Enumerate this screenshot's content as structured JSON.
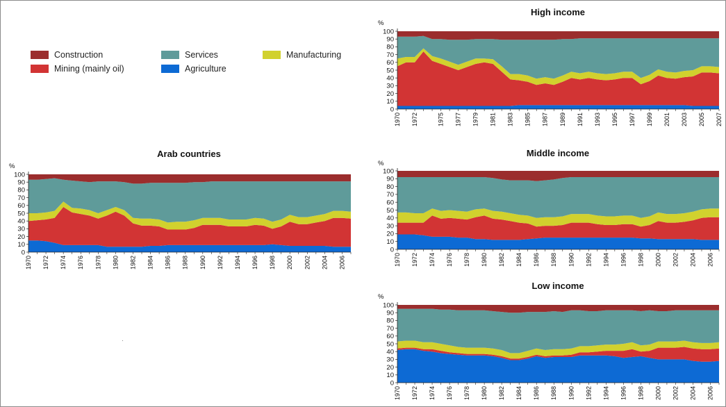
{
  "colors": {
    "Construction": "#9b2d2d",
    "Mining (mainly oil)": "#d23434",
    "Manufacturing": "#d1d12e",
    "Services": "#5f9b9a",
    "Agriculture": "#0d6ad4"
  },
  "legend": [
    {
      "label": "Construction",
      "key": "Construction"
    },
    {
      "label": "Services",
      "key": "Services"
    },
    {
      "label": "Manufacturing",
      "key": "Manufacturing"
    },
    {
      "label": "Mining (mainly oil)",
      "key": "Mining (mainly oil)"
    },
    {
      "label": "Agriculture",
      "key": "Agriculture"
    }
  ],
  "chart_data": [
    {
      "type": "area",
      "title": "High income",
      "ylabel": "%",
      "ylim": [
        0,
        100
      ],
      "yticks": [
        0,
        10,
        20,
        30,
        40,
        50,
        60,
        70,
        80,
        90,
        100
      ],
      "x": [
        1970,
        1971,
        1972,
        1973,
        1974,
        1975,
        1976,
        1977,
        1978,
        1979,
        1980,
        1981,
        1982,
        1983,
        1984,
        1985,
        1986,
        1987,
        1988,
        1989,
        1990,
        1991,
        1992,
        1993,
        1994,
        1995,
        1996,
        1997,
        1998,
        1999,
        2000,
        2001,
        2002,
        2003,
        2004,
        2005,
        2006,
        2007
      ],
      "xticks": [
        "1970",
        "1972",
        "1975",
        "1977",
        "1979",
        "1981",
        "1983",
        "1985",
        "1987",
        "1989",
        "1991",
        "1993",
        "1995",
        "1997",
        "1999",
        "2001",
        "2003",
        "2005",
        "2007"
      ],
      "series": [
        {
          "name": "Agriculture",
          "values": [
            4,
            4,
            4,
            4,
            4,
            4,
            4,
            4,
            4,
            4,
            4,
            4,
            4,
            4,
            5,
            5,
            5,
            5,
            5,
            5,
            5,
            5,
            5,
            5,
            5,
            5,
            5,
            5,
            5,
            5,
            5,
            5,
            5,
            5,
            4,
            4,
            4,
            4
          ]
        },
        {
          "name": "Mining (mainly oil)",
          "values": [
            51,
            56,
            56,
            70,
            58,
            54,
            50,
            46,
            50,
            54,
            56,
            54,
            44,
            34,
            32,
            30,
            26,
            28,
            26,
            30,
            35,
            33,
            35,
            33,
            32,
            33,
            35,
            35,
            27,
            31,
            38,
            35,
            34,
            36,
            38,
            43,
            43,
            42
          ]
        },
        {
          "name": "Manufacturing",
          "values": [
            10,
            7,
            7,
            4,
            6,
            7,
            7,
            7,
            7,
            7,
            5,
            6,
            7,
            7,
            8,
            8,
            8,
            8,
            8,
            8,
            8,
            8,
            8,
            8,
            8,
            8,
            8,
            8,
            8,
            8,
            8,
            8,
            8,
            8,
            8,
            8,
            8,
            8
          ]
        },
        {
          "name": "Services",
          "values": [
            28,
            26,
            26,
            16,
            22,
            25,
            28,
            32,
            28,
            25,
            25,
            26,
            34,
            44,
            44,
            46,
            50,
            48,
            50,
            47,
            42,
            45,
            43,
            45,
            46,
            45,
            43,
            43,
            51,
            47,
            40,
            43,
            44,
            42,
            41,
            36,
            36,
            37
          ]
        },
        {
          "name": "Construction",
          "values": [
            7,
            7,
            7,
            6,
            10,
            10,
            11,
            11,
            11,
            10,
            10,
            10,
            11,
            11,
            11,
            11,
            11,
            11,
            11,
            10,
            10,
            9,
            9,
            9,
            9,
            9,
            9,
            9,
            9,
            9,
            9,
            9,
            9,
            9,
            9,
            9,
            9,
            9
          ]
        }
      ]
    },
    {
      "type": "area",
      "title": "Arab countries",
      "ylabel": "%",
      "ylim": [
        0,
        100
      ],
      "yticks": [
        0,
        10,
        20,
        30,
        40,
        50,
        60,
        70,
        80,
        90,
        100
      ],
      "x": [
        1970,
        1971,
        1972,
        1973,
        1974,
        1975,
        1976,
        1977,
        1978,
        1979,
        1980,
        1981,
        1982,
        1983,
        1984,
        1985,
        1986,
        1987,
        1988,
        1989,
        1990,
        1991,
        1992,
        1993,
        1994,
        1995,
        1996,
        1997,
        1998,
        1999,
        2000,
        2001,
        2002,
        2003,
        2004,
        2005,
        2006,
        2007
      ],
      "xticks": [
        "1970",
        "1972",
        "1974",
        "1976",
        "1978",
        "1980",
        "1982",
        "1984",
        "1986",
        "1988",
        "1990",
        "1992",
        "1994",
        "1996",
        "1998",
        "2000",
        "2002",
        "2004",
        "2006"
      ],
      "series": [
        {
          "name": "Agriculture",
          "values": [
            15,
            15,
            14,
            12,
            9,
            9,
            9,
            9,
            9,
            7,
            7,
            7,
            7,
            7,
            8,
            8,
            9,
            9,
            9,
            9,
            9,
            9,
            9,
            9,
            9,
            9,
            9,
            9,
            10,
            9,
            8,
            8,
            8,
            8,
            8,
            7,
            7,
            7
          ]
        },
        {
          "name": "Mining (mainly oil)",
          "values": [
            25,
            26,
            28,
            32,
            49,
            42,
            40,
            38,
            34,
            40,
            45,
            40,
            30,
            27,
            26,
            25,
            20,
            20,
            20,
            22,
            26,
            26,
            26,
            24,
            24,
            24,
            26,
            25,
            20,
            24,
            31,
            28,
            28,
            30,
            32,
            37,
            37,
            36
          ]
        },
        {
          "name": "Manufacturing",
          "values": [
            10,
            9,
            9,
            9,
            7,
            6,
            7,
            7,
            7,
            7,
            6,
            7,
            7,
            9,
            9,
            9,
            9,
            10,
            10,
            10,
            9,
            9,
            9,
            9,
            9,
            9,
            9,
            9,
            9,
            9,
            9,
            9,
            9,
            9,
            9,
            9,
            9,
            9
          ]
        },
        {
          "name": "Services",
          "values": [
            43,
            43,
            43,
            42,
            28,
            35,
            35,
            36,
            41,
            37,
            33,
            36,
            44,
            45,
            46,
            47,
            51,
            50,
            50,
            49,
            46,
            47,
            47,
            49,
            49,
            49,
            47,
            48,
            52,
            49,
            43,
            46,
            46,
            44,
            42,
            38,
            38,
            39
          ]
        },
        {
          "name": "Construction",
          "values": [
            7,
            7,
            6,
            5,
            7,
            8,
            9,
            10,
            9,
            9,
            9,
            10,
            12,
            12,
            11,
            11,
            11,
            11,
            11,
            10,
            10,
            9,
            9,
            9,
            9,
            9,
            9,
            9,
            9,
            9,
            9,
            9,
            9,
            9,
            9,
            9,
            9,
            9
          ]
        }
      ]
    },
    {
      "type": "area",
      "title": "Middle income",
      "ylabel": "%",
      "ylim": [
        0,
        100
      ],
      "yticks": [
        0,
        10,
        20,
        30,
        40,
        50,
        60,
        70,
        80,
        90,
        100
      ],
      "x": [
        1970,
        1971,
        1972,
        1973,
        1974,
        1975,
        1976,
        1977,
        1978,
        1979,
        1980,
        1981,
        1982,
        1983,
        1984,
        1985,
        1986,
        1987,
        1988,
        1989,
        1990,
        1991,
        1992,
        1993,
        1994,
        1995,
        1996,
        1997,
        1998,
        1999,
        2000,
        2001,
        2002,
        2003,
        2004,
        2005,
        2006,
        2007
      ],
      "xticks": [
        "1970",
        "1972",
        "1974",
        "1976",
        "1978",
        "1980",
        "1982",
        "1984",
        "1986",
        "1988",
        "1990",
        "1992",
        "1994",
        "1996",
        "1998",
        "2000",
        "2002",
        "2004",
        "2006"
      ],
      "series": [
        {
          "name": "Agriculture",
          "values": [
            19,
            19,
            19,
            18,
            16,
            16,
            16,
            15,
            15,
            13,
            13,
            12,
            12,
            12,
            12,
            13,
            14,
            15,
            15,
            15,
            15,
            15,
            15,
            15,
            15,
            15,
            15,
            15,
            14,
            14,
            13,
            13,
            13,
            13,
            13,
            12,
            12,
            12
          ]
        },
        {
          "name": "Mining (mainly oil)",
          "values": [
            15,
            15,
            15,
            16,
            27,
            23,
            24,
            24,
            23,
            28,
            30,
            27,
            26,
            24,
            22,
            20,
            15,
            15,
            15,
            16,
            19,
            19,
            19,
            17,
            16,
            16,
            17,
            17,
            15,
            17,
            23,
            21,
            21,
            22,
            24,
            28,
            29,
            29
          ]
        },
        {
          "name": "Manufacturing",
          "values": [
            13,
            13,
            12,
            12,
            9,
            10,
            10,
            10,
            10,
            10,
            9,
            10,
            10,
            10,
            10,
            10,
            11,
            11,
            11,
            11,
            11,
            11,
            11,
            11,
            11,
            11,
            11,
            11,
            11,
            11,
            11,
            11,
            11,
            11,
            11,
            11,
            11,
            11
          ]
        },
        {
          "name": "Services",
          "values": [
            45,
            45,
            46,
            46,
            40,
            43,
            42,
            43,
            44,
            41,
            40,
            42,
            41,
            42,
            44,
            45,
            47,
            47,
            48,
            49,
            47,
            47,
            47,
            49,
            50,
            50,
            49,
            49,
            52,
            50,
            45,
            47,
            47,
            46,
            44,
            41,
            40,
            40
          ]
        },
        {
          "name": "Construction",
          "values": [
            8,
            8,
            8,
            8,
            8,
            8,
            8,
            8,
            8,
            8,
            8,
            9,
            11,
            12,
            12,
            12,
            13,
            12,
            11,
            9,
            8,
            8,
            8,
            8,
            8,
            8,
            8,
            8,
            8,
            8,
            8,
            8,
            8,
            8,
            8,
            8,
            8,
            8
          ]
        }
      ]
    },
    {
      "type": "area",
      "title": "Low income",
      "ylabel": "%",
      "ylim": [
        0,
        100
      ],
      "yticks": [
        0,
        10,
        20,
        30,
        40,
        50,
        60,
        70,
        80,
        90,
        100
      ],
      "x": [
        1970,
        1971,
        1972,
        1973,
        1974,
        1975,
        1976,
        1977,
        1978,
        1979,
        1980,
        1981,
        1982,
        1983,
        1984,
        1985,
        1986,
        1987,
        1988,
        1989,
        1990,
        1991,
        1992,
        1993,
        1994,
        1995,
        1996,
        1997,
        1998,
        1999,
        2000,
        2001,
        2002,
        2003,
        2004,
        2005,
        2006,
        2007
      ],
      "xticks": [
        "1970",
        "1972",
        "1974",
        "1976",
        "1978",
        "1980",
        "1982",
        "1984",
        "1986",
        "1988",
        "1990",
        "1992",
        "1994",
        "1996",
        "1998",
        "2000",
        "2002",
        "2004",
        "2006"
      ],
      "series": [
        {
          "name": "Agriculture",
          "values": [
            42,
            43,
            43,
            41,
            40,
            38,
            37,
            36,
            35,
            35,
            35,
            34,
            32,
            29,
            29,
            31,
            34,
            32,
            33,
            33,
            33,
            35,
            35,
            35,
            35,
            34,
            32,
            33,
            34,
            32,
            30,
            30,
            30,
            30,
            28,
            27,
            27,
            28
          ]
        },
        {
          "name": "Mining (mainly oil)",
          "values": [
            2,
            2,
            2,
            2,
            3,
            3,
            2,
            2,
            2,
            2,
            2,
            2,
            2,
            2,
            2,
            2,
            2,
            2,
            2,
            2,
            3,
            4,
            4,
            5,
            6,
            7,
            9,
            10,
            6,
            9,
            15,
            15,
            15,
            16,
            16,
            16,
            16,
            16
          ]
        },
        {
          "name": "Manufacturing",
          "values": [
            9,
            9,
            9,
            9,
            9,
            9,
            9,
            8,
            8,
            8,
            8,
            8,
            8,
            7,
            7,
            8,
            8,
            8,
            8,
            8,
            8,
            8,
            8,
            8,
            8,
            8,
            9,
            9,
            8,
            8,
            8,
            8,
            8,
            8,
            8,
            8,
            8,
            8
          ]
        },
        {
          "name": "Services",
          "values": [
            42,
            41,
            41,
            43,
            43,
            44,
            46,
            47,
            48,
            48,
            48,
            48,
            49,
            52,
            52,
            50,
            47,
            49,
            49,
            48,
            49,
            46,
            45,
            44,
            44,
            44,
            43,
            41,
            44,
            44,
            39,
            39,
            40,
            39,
            41,
            42,
            42,
            41
          ]
        },
        {
          "name": "Construction",
          "values": [
            5,
            5,
            5,
            5,
            5,
            6,
            6,
            7,
            7,
            7,
            7,
            8,
            9,
            10,
            10,
            9,
            9,
            9,
            8,
            9,
            7,
            7,
            8,
            8,
            7,
            7,
            7,
            7,
            8,
            7,
            8,
            8,
            7,
            7,
            7,
            7,
            7,
            7
          ]
        }
      ]
    }
  ]
}
